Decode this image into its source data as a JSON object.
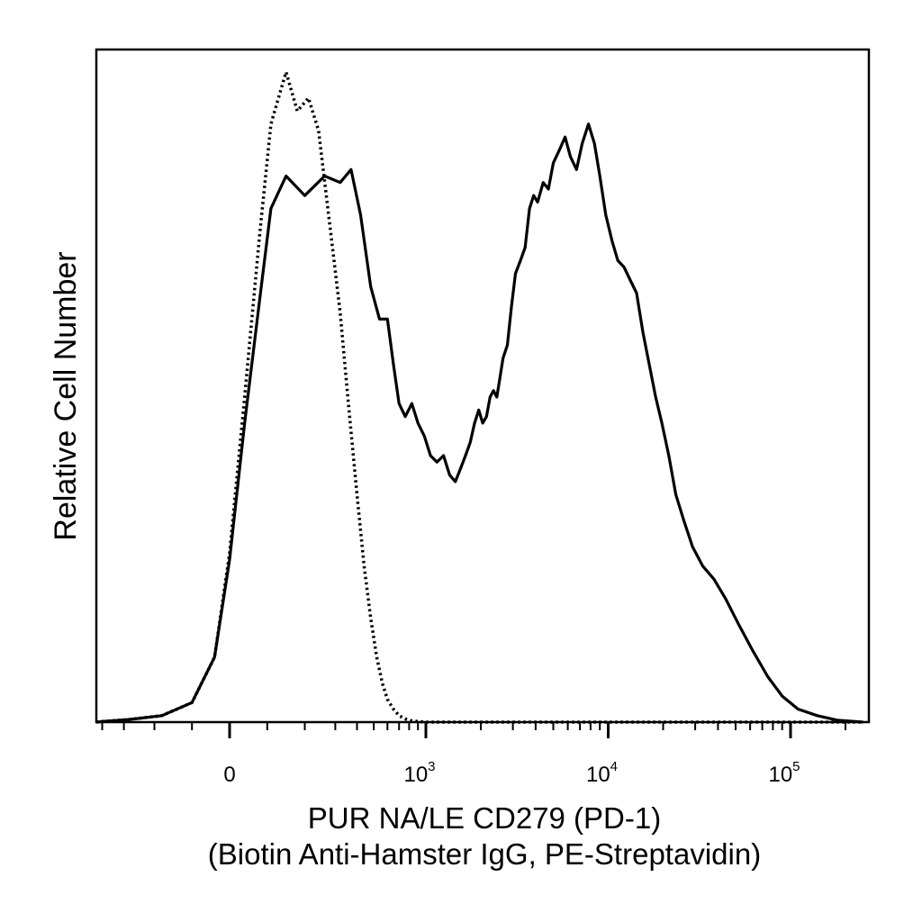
{
  "chart_data": {
    "type": "line",
    "title": "",
    "xlabel_line1": "PUR NA/LE CD279 (PD-1)",
    "xlabel_line2": "(Biotin Anti-Hamster IgG, PE-Streptavidin)",
    "ylabel": "Relative Cell Number",
    "x_scale": "biexponential (logicle)",
    "x_tick_labels": [
      {
        "base": "0",
        "exp": "",
        "value": 0
      },
      {
        "base": "10",
        "exp": "3",
        "value": 1000
      },
      {
        "base": "10",
        "exp": "4",
        "value": 10000
      },
      {
        "base": "10",
        "exp": "5",
        "value": 100000
      }
    ],
    "xlim": [
      -600,
      250000
    ],
    "ylim": [
      0,
      1.0
    ],
    "grid": false,
    "legend": "none",
    "series": [
      {
        "style": "solid",
        "color": "#000000",
        "x": [
          -600,
          -400,
          -280,
          -180,
          -100,
          -40,
          0,
          40,
          80,
          110,
          150,
          200,
          260,
          320,
          370,
          420,
          480,
          540,
          600,
          650,
          700,
          760,
          830,
          900,
          980,
          1060,
          1150,
          1250,
          1350,
          1450,
          1550,
          1650,
          1750,
          1850,
          1950,
          2050,
          2150,
          2250,
          2350,
          2450,
          2550,
          2650,
          2800,
          2950,
          3100,
          3300,
          3500,
          3700,
          3900,
          4100,
          4400,
          4700,
          5000,
          5400,
          5800,
          6200,
          6700,
          7200,
          7800,
          8400,
          9000,
          9700,
          10500,
          11300,
          12200,
          13200,
          14300,
          15500,
          16800,
          18200,
          19700,
          21500,
          23500,
          26000,
          29000,
          33000,
          38000,
          44000,
          52000,
          62000,
          75000,
          90000,
          110000,
          140000,
          180000,
          250000
        ],
        "y": [
          0.0,
          0.001,
          0.004,
          0.01,
          0.03,
          0.1,
          0.25,
          0.46,
          0.65,
          0.79,
          0.84,
          0.81,
          0.84,
          0.83,
          0.85,
          0.78,
          0.67,
          0.62,
          0.62,
          0.55,
          0.49,
          0.47,
          0.49,
          0.46,
          0.44,
          0.41,
          0.4,
          0.41,
          0.38,
          0.37,
          0.39,
          0.41,
          0.43,
          0.46,
          0.48,
          0.46,
          0.47,
          0.5,
          0.51,
          0.5,
          0.53,
          0.56,
          0.58,
          0.64,
          0.69,
          0.71,
          0.73,
          0.79,
          0.81,
          0.8,
          0.83,
          0.82,
          0.86,
          0.88,
          0.9,
          0.87,
          0.85,
          0.89,
          0.92,
          0.89,
          0.84,
          0.78,
          0.74,
          0.71,
          0.7,
          0.68,
          0.66,
          0.6,
          0.55,
          0.5,
          0.46,
          0.41,
          0.35,
          0.31,
          0.27,
          0.24,
          0.22,
          0.19,
          0.15,
          0.11,
          0.07,
          0.04,
          0.02,
          0.01,
          0.003,
          0.0
        ]
      },
      {
        "style": "dotted",
        "color": "#000000",
        "x": [
          -600,
          -400,
          -280,
          -180,
          -100,
          -40,
          0,
          40,
          80,
          110,
          150,
          180,
          210,
          240,
          280,
          320,
          360,
          400,
          440,
          480,
          520,
          560,
          600,
          650,
          700,
          760,
          830,
          900,
          1000,
          1200,
          1500,
          2000,
          5000,
          20000,
          250000
        ],
        "y": [
          0.0,
          0.001,
          0.004,
          0.01,
          0.03,
          0.1,
          0.26,
          0.5,
          0.75,
          0.92,
          1.0,
          0.94,
          0.96,
          0.91,
          0.76,
          0.63,
          0.48,
          0.35,
          0.24,
          0.16,
          0.1,
          0.06,
          0.035,
          0.02,
          0.01,
          0.005,
          0.002,
          0.001,
          0.0,
          0.0,
          0.0,
          0.0,
          0.0,
          0.0,
          0.0
        ]
      }
    ]
  }
}
